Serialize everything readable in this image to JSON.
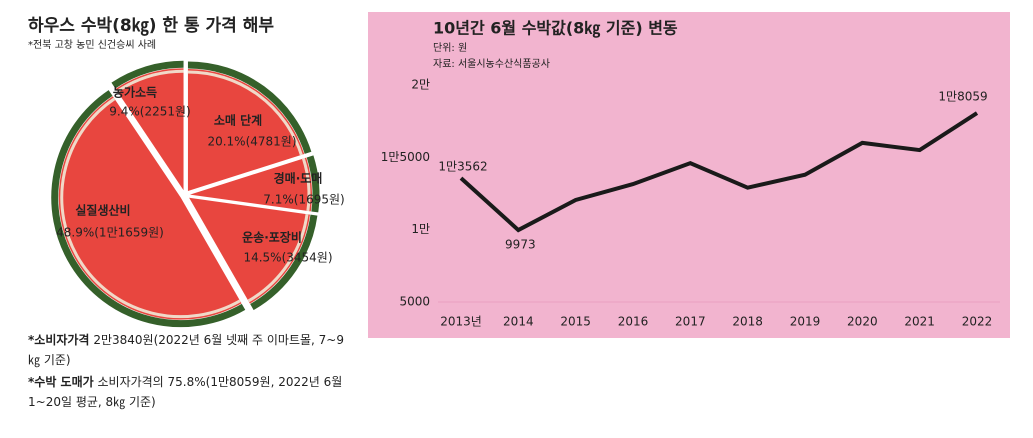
{
  "chart_data": [
    {
      "type": "pie",
      "title": "하우스 수박(8㎏) 한 통 가격 해부",
      "subtitle": "*전북 고창 농민 신건승씨 사례",
      "categories": [
        "농가소득",
        "소매 단계",
        "경매·도매",
        "운송·포장비",
        "실질생산비"
      ],
      "values": [
        9.4,
        20.1,
        7.1,
        14.5,
        48.9
      ],
      "value_labels": [
        "9.4%(2251원)",
        "20.1%(4781원)",
        "7.1%(1695원)",
        "14.5%(3454원)",
        "48.9%(1만1659원)"
      ],
      "color": "#e8463f",
      "notes": [
        {
          "label": "*소비자가격",
          "text": "2만3840원(2022년 6월 넷째 주 이마트몰, 7~9㎏ 기준)"
        },
        {
          "label": "*수박 도매가",
          "text": "소비자가격의 75.8%(1만8059원, 2022년 6월1~20일 평균, 8㎏ 기준)"
        }
      ]
    },
    {
      "type": "line",
      "title": "10년간 6월 수박값(8㎏ 기준) 변동",
      "subtitle": [
        "단위: 원",
        "자료: 서울시농수산식품공사"
      ],
      "categories": [
        "2013년",
        "2014",
        "2015",
        "2016",
        "2017",
        "2018",
        "2019",
        "2020",
        "2021",
        "2022"
      ],
      "series": [
        {
          "name": null,
          "color": "#1a1a1a",
          "values": [
            13562,
            9973,
            12050,
            13150,
            14600,
            12900,
            13800,
            16000,
            15500,
            18059
          ],
          "value_labels": [
            "1만3562",
            "9973",
            null,
            null,
            null,
            null,
            null,
            null,
            null,
            "1만8059"
          ]
        }
      ],
      "ylim": [
        5000,
        20000
      ],
      "yticks": [
        5000,
        {
          "value": 10000,
          "label": "1만"
        },
        {
          "value": 15000,
          "label": "1만5000"
        },
        {
          "value": 20000,
          "label": "2만"
        }
      ],
      "background": "#f2b4cf",
      "grid": false
    }
  ]
}
